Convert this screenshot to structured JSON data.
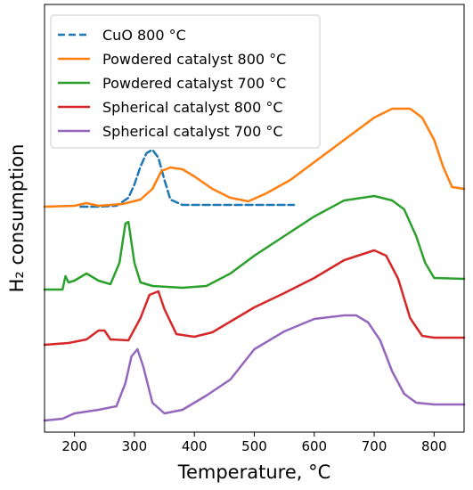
{
  "chart_data": {
    "type": "line",
    "xlabel": "Temperature, °C",
    "ylabel": "H₂ consumption",
    "xlim": [
      150,
      850
    ],
    "xticks": [
      200,
      300,
      400,
      500,
      600,
      700,
      800
    ],
    "y_ticks_shown": false,
    "grid": false,
    "legend_position": "top-left",
    "series": [
      {
        "name": "CuO 800 °C",
        "color": "#1f77b4",
        "dash": true,
        "x": [
          210,
          240,
          270,
          290,
          300,
          310,
          320,
          330,
          340,
          350,
          360,
          380,
          420,
          500,
          566
        ],
        "y": [
          0.0,
          0.0,
          0.01,
          0.1,
          0.25,
          0.45,
          0.6,
          0.64,
          0.55,
          0.3,
          0.08,
          0.02,
          0.02,
          0.02,
          0.02
        ]
      },
      {
        "name": "Powdered catalyst 800 °C",
        "color": "#ff7f0e",
        "dash": false,
        "x": [
          150,
          200,
          220,
          240,
          280,
          310,
          330,
          345,
          360,
          380,
          400,
          430,
          460,
          490,
          520,
          560,
          600,
          650,
          700,
          730,
          760,
          780,
          800,
          815,
          830,
          850
        ],
        "y": [
          0.0,
          0.01,
          0.04,
          0.01,
          0.03,
          0.08,
          0.2,
          0.4,
          0.44,
          0.42,
          0.34,
          0.2,
          0.1,
          0.06,
          0.15,
          0.3,
          0.5,
          0.75,
          1.0,
          1.1,
          1.1,
          1.0,
          0.75,
          0.45,
          0.22,
          0.2
        ]
      },
      {
        "name": "Powdered catalyst 700 °C",
        "color": "#2ca02c",
        "dash": false,
        "x": [
          150,
          180,
          185,
          190,
          200,
          220,
          240,
          260,
          275,
          285,
          290,
          300,
          310,
          330,
          380,
          420,
          460,
          500,
          550,
          600,
          650,
          700,
          730,
          750,
          770,
          785,
          800,
          850
        ],
        "y": [
          0.0,
          0.0,
          0.15,
          0.08,
          0.1,
          0.18,
          0.1,
          0.06,
          0.3,
          0.74,
          0.76,
          0.3,
          0.08,
          0.04,
          0.02,
          0.04,
          0.18,
          0.38,
          0.6,
          0.82,
          1.0,
          1.05,
          1.0,
          0.9,
          0.6,
          0.3,
          0.13,
          0.12
        ]
      },
      {
        "name": "Spherical catalyst 800 °C",
        "color": "#d62728",
        "dash": false,
        "x": [
          150,
          190,
          220,
          240,
          250,
          260,
          290,
          310,
          325,
          340,
          350,
          370,
          400,
          430,
          470,
          500,
          550,
          600,
          650,
          700,
          720,
          740,
          760,
          780,
          800,
          850
        ],
        "y": [
          0.0,
          0.02,
          0.06,
          0.16,
          0.16,
          0.06,
          0.05,
          0.3,
          0.56,
          0.6,
          0.4,
          0.12,
          0.09,
          0.14,
          0.3,
          0.42,
          0.58,
          0.75,
          0.95,
          1.06,
          1.0,
          0.74,
          0.3,
          0.1,
          0.08,
          0.08
        ]
      },
      {
        "name": "Spherical catalyst 700 °C",
        "color": "#9467bd",
        "dash": false,
        "x": [
          150,
          180,
          200,
          240,
          270,
          285,
          295,
          305,
          315,
          330,
          350,
          380,
          420,
          460,
          500,
          550,
          600,
          650,
          670,
          690,
          710,
          730,
          750,
          770,
          800,
          850
        ],
        "y": [
          0.0,
          0.02,
          0.08,
          0.12,
          0.16,
          0.42,
          0.72,
          0.8,
          0.6,
          0.2,
          0.08,
          0.12,
          0.28,
          0.46,
          0.8,
          1.0,
          1.14,
          1.18,
          1.18,
          1.1,
          0.9,
          0.55,
          0.3,
          0.2,
          0.18,
          0.18
        ]
      }
    ]
  }
}
